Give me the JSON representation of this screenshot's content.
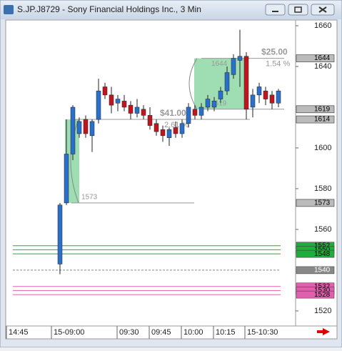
{
  "window_title": "S.JP.J8729 - Sony Financial Holdings Inc., 3 Min",
  "chart_data": {
    "type": "candlestick",
    "up_color": "#2a6fc9",
    "down_color": "#c0141e",
    "ylim": [
      1512.6,
      1662.8
    ],
    "yticks": [
      1520,
      1560,
      1580,
      1600,
      1640,
      1660
    ],
    "x_labels": [
      "14:45",
      "15-09:00",
      "09:30",
      "09:45",
      "10:00",
      "10:15",
      "15-10:30"
    ],
    "ohlc": {
      "open": [
        1543,
        1573,
        1597,
        1607,
        1614,
        1606,
        1614,
        1630,
        1626,
        1622,
        1623,
        1621,
        1617,
        1619,
        1616,
        1612,
        1609,
        1605,
        1610,
        1607,
        1612,
        1619,
        1616,
        1620,
        1620,
        1624,
        1628,
        1636,
        1643,
        1645,
        1620,
        1626,
        1628,
        1626,
        1622
      ],
      "high": [
        1573,
        1614,
        1621,
        1615,
        1616,
        1614,
        1634,
        1632,
        1630,
        1626,
        1626,
        1623,
        1624,
        1621,
        1620,
        1614,
        1611,
        1610,
        1613,
        1614,
        1622,
        1621,
        1622,
        1626,
        1625,
        1630,
        1640,
        1646,
        1658,
        1647,
        1629,
        1632,
        1630,
        1628,
        1629
      ],
      "low": [
        1538,
        1572,
        1594,
        1605,
        1605,
        1598,
        1612,
        1624,
        1617,
        1618,
        1618,
        1614,
        1615,
        1614,
        1609,
        1606,
        1603,
        1601,
        1605,
        1605,
        1610,
        1614,
        1614,
        1618,
        1618,
        1622,
        1626,
        1634,
        1630,
        1614,
        1615,
        1622,
        1621,
        1619,
        1620
      ],
      "close": [
        1572,
        1597,
        1620,
        1613,
        1607,
        1613,
        1628,
        1626,
        1621,
        1624,
        1620,
        1617,
        1620,
        1616,
        1611,
        1608,
        1606,
        1609,
        1607,
        1612,
        1620,
        1616,
        1620,
        1624,
        1623,
        1628,
        1637,
        1644,
        1645,
        1619,
        1626,
        1630,
        1624,
        1622,
        1628
      ]
    },
    "ranges": [
      {
        "low": 1573,
        "high": 1614,
        "change": "$41.00",
        "percent": "2.61 %"
      },
      {
        "low": 1619,
        "high": 1644,
        "change": "$25.00",
        "percent": "1.54 %"
      }
    ],
    "price_markers": [
      1644,
      1619,
      1614,
      1573
    ],
    "levels": [
      {
        "value": 1552,
        "color": "#1fae3c"
      },
      {
        "value": 1550,
        "color": "#1fae3c"
      },
      {
        "value": 1548,
        "color": "#1fae3c"
      },
      {
        "value": 1540,
        "color": "#888888"
      },
      {
        "value": 1532,
        "color": "#e060b0"
      },
      {
        "value": 1530,
        "color": "#e060b0"
      },
      {
        "value": 1528,
        "color": "#e060b0"
      }
    ]
  }
}
